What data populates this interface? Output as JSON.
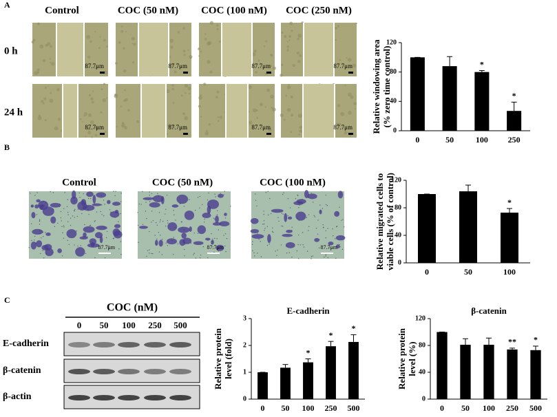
{
  "panel_a": {
    "label": "A",
    "columns": [
      "Control",
      "COC (50 nM)",
      "COC (100 nM)",
      "COC (250 nM)"
    ],
    "rows": [
      "0 h",
      "24 h"
    ],
    "scale_label": "87.7μm"
  },
  "panel_b": {
    "label": "B",
    "columns": [
      "Control",
      "COC (50 nM)",
      "COC (100 nM)"
    ],
    "scale_label": "87.7μm"
  },
  "panel_c": {
    "label": "C",
    "treatment": "COC (nM)",
    "lanes": [
      "0",
      "50",
      "100",
      "250",
      "500"
    ],
    "proteins": [
      "E-cadherin",
      "β-catenin",
      "β-actin"
    ]
  },
  "chart_data": [
    {
      "type": "bar",
      "ylabel": [
        "Relative windowing area",
        "(% zero time control)"
      ],
      "categories": [
        "0",
        "50",
        "100",
        "250"
      ],
      "values": [
        100,
        88,
        80,
        27
      ],
      "errors": [
        0,
        13,
        2,
        12
      ],
      "significance": [
        null,
        null,
        "*",
        "*"
      ],
      "color": "#000000",
      "ylim": [
        0,
        120
      ],
      "yticks": [
        0,
        40,
        80,
        120
      ]
    },
    {
      "type": "bar",
      "ylabel": [
        "Relative migrated cells to",
        "viable cells (% of control)"
      ],
      "categories": [
        "0",
        "50",
        "100"
      ],
      "values": [
        100,
        104,
        73
      ],
      "errors": [
        0,
        9,
        6
      ],
      "significance": [
        null,
        null,
        "*"
      ],
      "color": "#000000",
      "ylim": [
        0,
        120
      ],
      "yticks": [
        0,
        40,
        80,
        120
      ]
    },
    {
      "type": "bar",
      "title": "E-cadherin",
      "ylabel": [
        "Relative protein",
        "level (fold)"
      ],
      "categories": [
        "0",
        "50",
        "100",
        "250",
        "500"
      ],
      "values": [
        1.0,
        1.17,
        1.37,
        1.97,
        2.13
      ],
      "errors": [
        0,
        0.12,
        0.13,
        0.18,
        0.27
      ],
      "significance": [
        null,
        null,
        "*",
        "*",
        "*"
      ],
      "color": "#000000",
      "ylim": [
        0,
        3
      ],
      "yticks": [
        0,
        1,
        2,
        3
      ]
    },
    {
      "type": "bar",
      "title": "β-catenin",
      "ylabel": [
        "Relative protein",
        "level (%)"
      ],
      "categories": [
        "0",
        "50",
        "100",
        "250",
        "500"
      ],
      "values": [
        100,
        81,
        81,
        74,
        73
      ],
      "errors": [
        0,
        9,
        10,
        2,
        6
      ],
      "significance": [
        null,
        null,
        null,
        "**",
        "*"
      ],
      "color": "#000000",
      "ylim": [
        0,
        120
      ],
      "yticks": [
        0,
        40,
        80,
        120
      ]
    }
  ]
}
